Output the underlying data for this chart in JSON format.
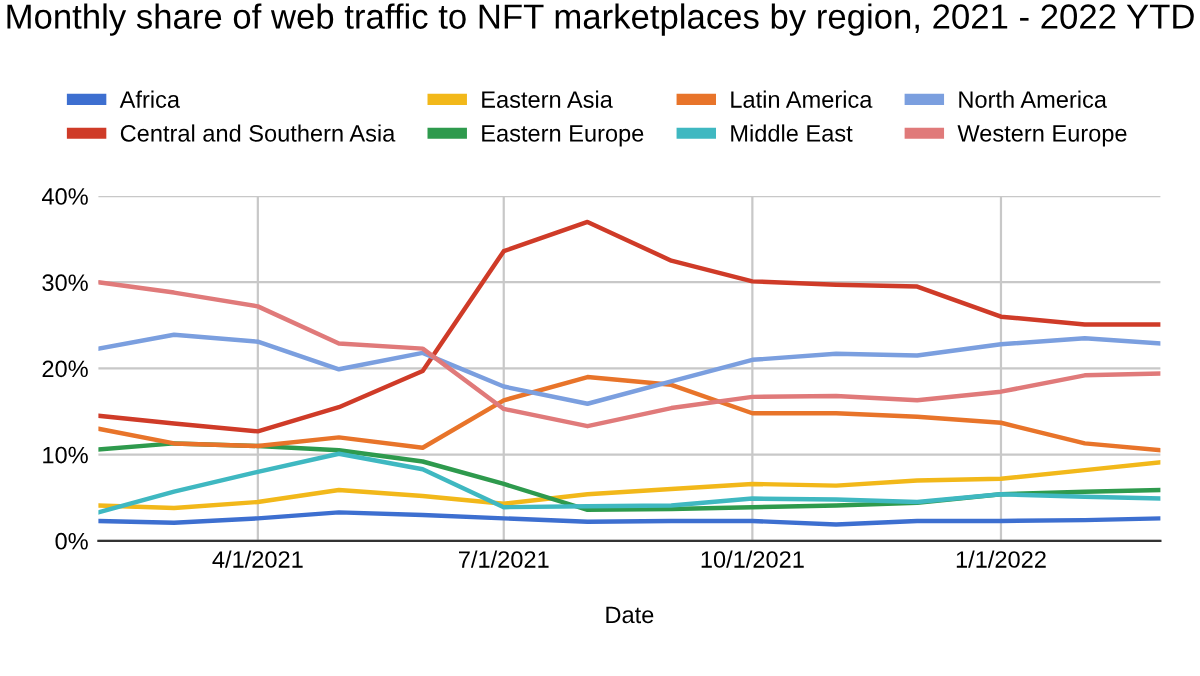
{
  "chart_data": {
    "type": "line",
    "title": "Monthly share of web traffic to NFT marketplaces by region, 2021 - 2022 YTD",
    "xlabel": "Date",
    "x": [
      "2021-02-01",
      "2021-03-01",
      "2021-04-01",
      "2021-05-01",
      "2021-06-01",
      "2021-07-01",
      "2021-08-01",
      "2021-09-01",
      "2021-10-01",
      "2021-11-01",
      "2021-12-01",
      "2022-01-01",
      "2022-02-01",
      "2022-03-01"
    ],
    "xlim": [
      "2021-02-01",
      "2022-03-01"
    ],
    "xticks": [
      {
        "value": "2021-04-01",
        "label": "4/1/2021"
      },
      {
        "value": "2021-07-01",
        "label": "7/1/2021"
      },
      {
        "value": "2021-10-01",
        "label": "10/1/2021"
      },
      {
        "value": "2022-01-01",
        "label": "1/1/2022"
      }
    ],
    "ylim": [
      0,
      40
    ],
    "yticks": [
      {
        "value": 0,
        "label": "0%"
      },
      {
        "value": 10,
        "label": "10%"
      },
      {
        "value": 20,
        "label": "20%"
      },
      {
        "value": 30,
        "label": "30%"
      },
      {
        "value": 40,
        "label": "40%"
      }
    ],
    "grid": true,
    "legend": "top",
    "marker": "none",
    "line_style": "solid",
    "series": [
      {
        "name": "Africa",
        "color": "#3d6fd0",
        "values": [
          2.3,
          2.1,
          2.6,
          3.3,
          3.0,
          2.6,
          2.2,
          2.3,
          2.3,
          1.9,
          2.3,
          2.3,
          2.4,
          2.6
        ]
      },
      {
        "name": "Central and Southern Asia",
        "color": "#cf3b28",
        "values": [
          14.5,
          13.6,
          12.7,
          15.5,
          19.7,
          33.6,
          37.0,
          32.5,
          30.1,
          29.7,
          29.5,
          26.0,
          25.1,
          25.1
        ]
      },
      {
        "name": "Eastern Asia",
        "color": "#f2b81a",
        "values": [
          4.1,
          3.8,
          4.5,
          5.9,
          5.2,
          4.3,
          5.4,
          6.0,
          6.6,
          6.4,
          7.0,
          7.2,
          8.2,
          9.1
        ]
      },
      {
        "name": "Eastern Europe",
        "color": "#2e9a4d",
        "values": [
          10.6,
          11.3,
          11.0,
          10.5,
          9.2,
          6.6,
          3.6,
          3.7,
          3.9,
          4.1,
          4.4,
          5.4,
          5.7,
          5.9
        ]
      },
      {
        "name": "Latin America",
        "color": "#e8742a",
        "values": [
          13.0,
          11.3,
          11.0,
          12.0,
          10.8,
          16.3,
          19.0,
          18.1,
          14.8,
          14.8,
          14.4,
          13.7,
          11.3,
          10.5
        ]
      },
      {
        "name": "Middle East",
        "color": "#3fb8c1",
        "values": [
          3.3,
          5.7,
          8.0,
          10.1,
          8.3,
          3.9,
          4.0,
          4.1,
          4.9,
          4.8,
          4.5,
          5.4,
          5.1,
          4.9
        ]
      },
      {
        "name": "North America",
        "color": "#7b9fdf",
        "values": [
          22.3,
          23.9,
          23.1,
          19.9,
          21.8,
          17.9,
          15.9,
          18.5,
          21.0,
          21.7,
          21.5,
          22.8,
          23.5,
          22.9
        ]
      },
      {
        "name": "Western Europe",
        "color": "#e07a7a",
        "values": [
          30.0,
          28.8,
          27.2,
          22.9,
          22.3,
          15.3,
          13.3,
          15.4,
          16.7,
          16.8,
          16.3,
          17.3,
          19.2,
          19.4
        ]
      }
    ]
  }
}
